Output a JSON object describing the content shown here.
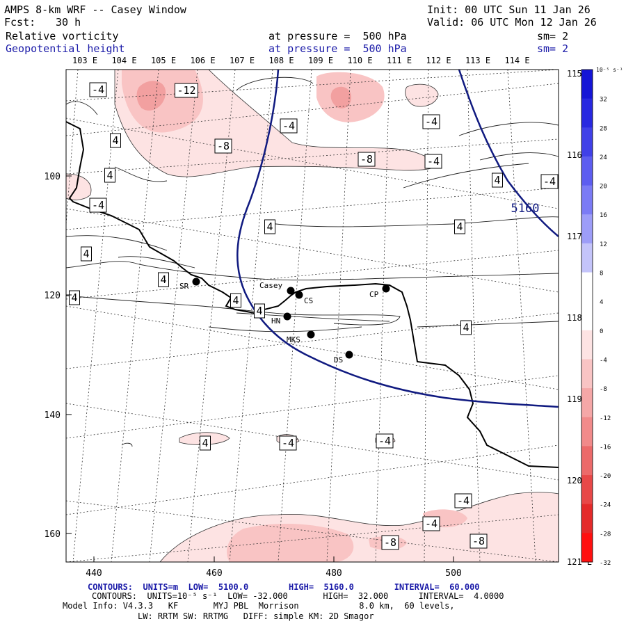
{
  "header": {
    "title": "AMPS 8-km WRF -- Casey Window",
    "init": "Init: 00 UTC Sun 11 Jan 26",
    "fcst_label": "Fcst:",
    "fcst_value": "30 h",
    "valid": "Valid: 06 UTC Mon 12 Jan 26",
    "field1_name": "Relative vorticity",
    "field1_level": "at pressure =  500 hPa",
    "field1_smooth": "sm= 2",
    "field2_name": "Geopotential height",
    "field2_level": "at pressure =  500 hPa",
    "field2_smooth": "sm= 2"
  },
  "map": {
    "lon_labels_top": [
      "103 E",
      "104 E",
      "105 E",
      "106 E",
      "107 E",
      "108 E",
      "109 E",
      "110 E",
      "111 E",
      "112 E",
      "113 E",
      "114 E"
    ],
    "lon_labels_right": [
      "115 E",
      "116 E",
      "117 E",
      "118 E",
      "119 E",
      "120 E",
      "121 E"
    ],
    "x_ticks": [
      "440",
      "460",
      "480",
      "500"
    ],
    "y_ticks": [
      "100",
      "120",
      "140",
      "160"
    ],
    "stations": [
      {
        "name": "SR"
      },
      {
        "name": "Casey"
      },
      {
        "name": "CS"
      },
      {
        "name": "CP"
      },
      {
        "name": "HN"
      },
      {
        "name": "MKS"
      },
      {
        "name": "DS"
      }
    ],
    "contour_labels_vort": [
      "-12",
      "-4",
      "-8",
      "-4",
      "-8",
      "-4",
      "-4",
      "4",
      "4",
      "-4",
      "4",
      "4",
      "4",
      "4",
      "4",
      "4",
      "4",
      "4",
      "4",
      "4",
      "4",
      "-4",
      "-4",
      "-4",
      "-4",
      "-8",
      "-8",
      "-4"
    ],
    "height_label": "5160",
    "colors": {
      "height_contour": "#101a80",
      "coast": "#000000",
      "neg_shade_light": "#fde3e3",
      "neg_shade_mid": "#f9c4c4",
      "neg_shade_dark": "#f2a0a0"
    }
  },
  "colorbar": {
    "unit": "10⁻⁵ s⁻¹",
    "ticks": [
      "32",
      "28",
      "24",
      "20",
      "16",
      "12",
      "8",
      "4",
      "0",
      "-4",
      "-8",
      "-12",
      "-16",
      "-20",
      "-24",
      "-28",
      "-32"
    ],
    "colors": [
      "#1515d6",
      "#2828e0",
      "#4040e8",
      "#5d5df0",
      "#7b7bf5",
      "#9d9df8",
      "#c4c4fa",
      "#ffffff",
      "#ffffff",
      "#fde3e3",
      "#f9c4c4",
      "#f5a7a7",
      "#f18a8a",
      "#ec6a6a",
      "#e84848",
      "#e42a2a",
      "#ff1010"
    ]
  },
  "footer": {
    "line1": "CONTOURS:  UNITS=m  LOW=  5100.0        HIGH=  5160.0        INTERVAL=  60.000",
    "line2": "CONTOURS:  UNITS=10⁻⁵ s⁻¹  LOW= -32.000       HIGH=  32.000      INTERVAL=  4.0000",
    "line3": "Model Info: V4.3.3   KF       MYJ PBL  Morrison            8.0 km,  60 levels,",
    "line4": "LW: RRTM SW: RRTMG   DIFF: simple KM: 2D Smagor"
  }
}
